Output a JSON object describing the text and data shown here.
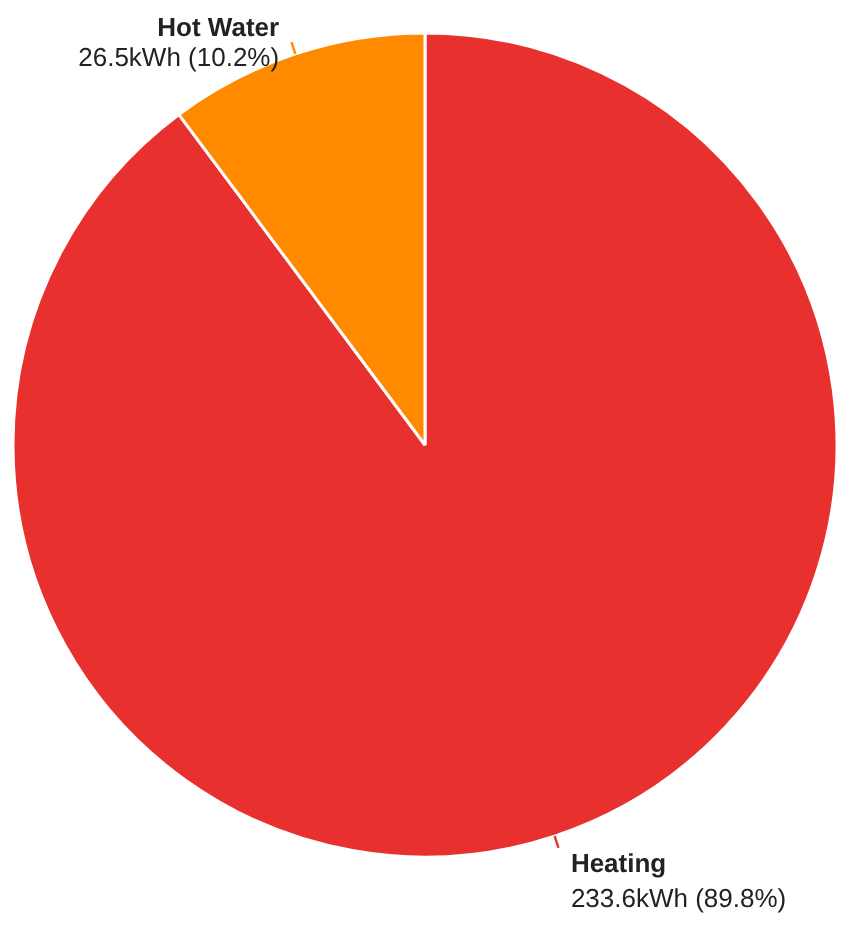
{
  "chart_data": {
    "type": "pie",
    "categories": [
      "Heating",
      "Hot Water"
    ],
    "values": [
      233.6,
      26.5
    ],
    "colors": [
      "#e8302e",
      "#ff8a00"
    ],
    "value_labels": [
      "233.6kWh (89.8%)",
      "26.5kWh (10.2%)"
    ]
  }
}
